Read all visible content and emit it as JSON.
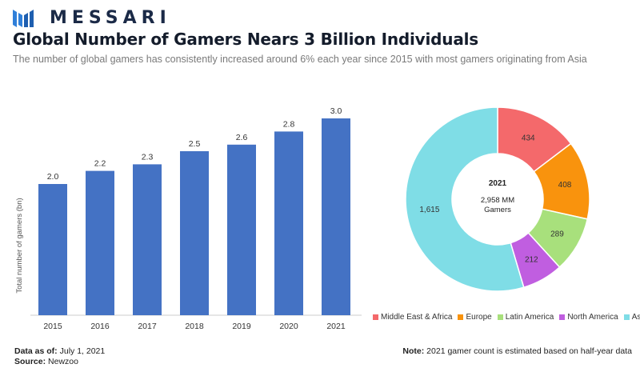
{
  "brand": {
    "name": "MESSARI"
  },
  "header": {
    "title": "Global Number of Gamers Nears 3 Billion Individuals",
    "subtitle": "The number of global gamers has consistently increased around 6% each year since 2015 with most gamers originating from Asia"
  },
  "chart_data": [
    {
      "type": "bar",
      "categories": [
        "2015",
        "2016",
        "2017",
        "2018",
        "2019",
        "2020",
        "2021"
      ],
      "values": [
        2.0,
        2.2,
        2.3,
        2.5,
        2.6,
        2.8,
        3.0
      ],
      "data_labels": [
        "2.0",
        "2.2",
        "2.3",
        "2.5",
        "2.6",
        "2.8",
        "3.0"
      ],
      "title": "",
      "xlabel": "",
      "ylabel": "Total number of gamers (bn)",
      "ylim": [
        0,
        3.0
      ],
      "grid": false,
      "color": "#4472c4"
    },
    {
      "type": "pie",
      "donut": true,
      "center_title": "2021",
      "center_value": "2,958 MM",
      "center_unit": "Gamers",
      "labels": [
        "Middle East & Africa",
        "Europe",
        "Latin America",
        "North America",
        "Asia"
      ],
      "values": [
        434,
        408,
        289,
        212,
        1615
      ],
      "data_labels": [
        "434",
        "408",
        "289",
        "212",
        "1,615"
      ],
      "colors": [
        "#f4696b",
        "#f9930d",
        "#a8e07c",
        "#c05ee0",
        "#7fdde6"
      ],
      "legend": "bottom"
    }
  ],
  "footer": {
    "data_as_of_label": "Data as of:",
    "data_as_of_value": "July 1, 2021",
    "source_label": "Source:",
    "source_value": "Newzoo",
    "note_label": "Note:",
    "note_value": "2021 gamer count is estimated based on half-year data"
  }
}
